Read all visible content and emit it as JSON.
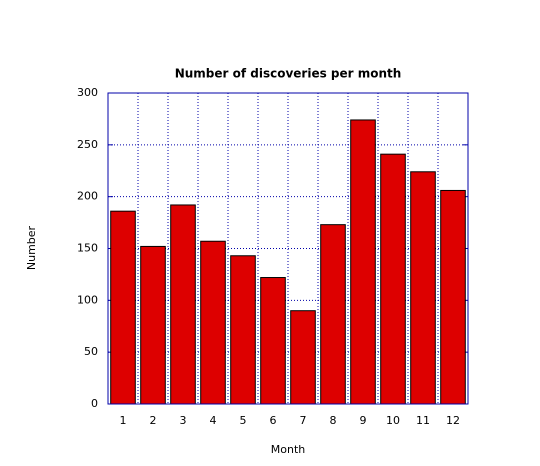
{
  "chart_data": {
    "type": "bar",
    "title": "Number of discoveries per month",
    "x_label": "Month",
    "y_label": "Number",
    "categories": [
      "1",
      "2",
      "3",
      "4",
      "5",
      "6",
      "7",
      "8",
      "9",
      "10",
      "11",
      "12"
    ],
    "values": [
      186,
      152,
      192,
      157,
      143,
      122,
      90,
      173,
      274,
      241,
      224,
      206
    ],
    "color": "#dd0000",
    "ylim": [
      0,
      300
    ],
    "yticks": [
      0,
      50,
      100,
      150,
      200,
      250,
      300
    ],
    "grid": true
  }
}
